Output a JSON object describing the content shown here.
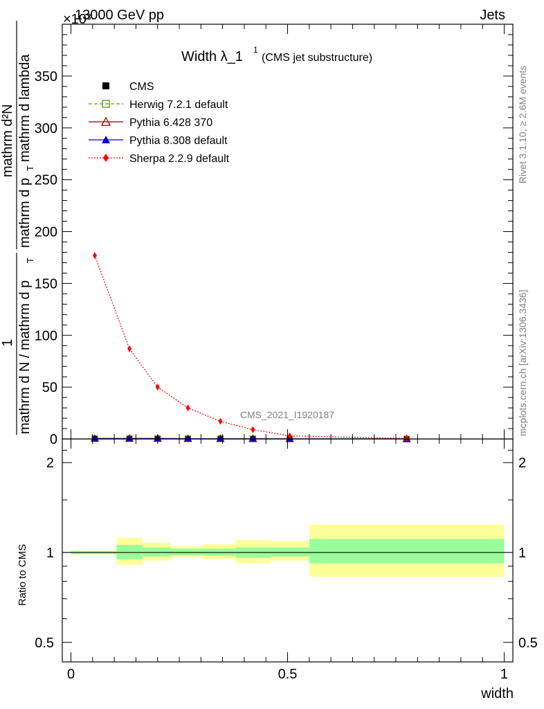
{
  "header": {
    "left": "13000 GeV pp",
    "right": "Jets",
    "exponent": "×10³"
  },
  "title": {
    "main": "Width λ_1",
    "superscript": "1",
    "sub": "(CMS jet substructure)"
  },
  "watermark": "CMS_2021_I1920187",
  "side_labels": {
    "rivet": "Rivet 3.1.10, ≥ 2.6M events",
    "mcplots": "mcplots.cern.ch [arXiv:1306.3436]"
  },
  "axis_labels": {
    "ylabel_main": "1 / (mathrm d N / mathrm d p_T) · mathrm d²N / (mathrm d p_T mathrm d lambda)",
    "ylabel_main_num_1": "1",
    "ylabel_main_den_1": "mathrm d N / mathrm d p",
    "ylabel_main_den_1_sub": "T",
    "ylabel_main_num_2": "mathrm d²N",
    "ylabel_main_den_2": "mathrm d p",
    "ylabel_main_den_2_sub": "T",
    "ylabel_main_den_2_rest": "mathrm d lambda",
    "ylabel_ratio": "Ratio to CMS",
    "xlabel": "width"
  },
  "colors": {
    "cms": "#000000",
    "herwig": "#4d9a00",
    "pythia6": "#8b0000",
    "pythia8": "#0000cc",
    "sherpa": "#ff0000",
    "band_inner": "#99ff99",
    "band_outer": "#ffff99"
  },
  "chart_data": [
    {
      "type": "line",
      "panel": "main",
      "xlim": [
        -0.02,
        1.02
      ],
      "ylim": [
        0,
        400
      ],
      "y_ticks": [
        0,
        50,
        100,
        150,
        200,
        250,
        300,
        350
      ],
      "y_tick_labels": [
        "0",
        "50",
        "100",
        "150",
        "200",
        "250",
        "300",
        "350"
      ],
      "y_multiplier_label": "×10³",
      "legend_position": "top-left",
      "series": [
        {
          "name": "CMS",
          "marker": "square-filled",
          "color": "#000000",
          "x": [
            0.055,
            0.135,
            0.2,
            0.27,
            0.345,
            0.42,
            0.505,
            0.775
          ],
          "y": [
            0.4,
            0.4,
            0.4,
            0.3,
            0.3,
            0.2,
            0.1,
            0.05
          ]
        },
        {
          "name": "Herwig 7.2.1 default",
          "marker": "square-open",
          "line": "dashed",
          "color": "#4d9a00",
          "x": [
            0.055,
            0.135,
            0.2,
            0.27,
            0.345,
            0.42,
            0.505,
            0.775
          ],
          "y": [
            0.4,
            0.4,
            0.4,
            0.3,
            0.3,
            0.2,
            0.1,
            0.05
          ]
        },
        {
          "name": "Pythia 6.428 370",
          "marker": "triangle-open",
          "line": "solid",
          "color": "#8b0000",
          "x": [
            0.055,
            0.135,
            0.2,
            0.27,
            0.345,
            0.42,
            0.505,
            0.775
          ],
          "y": [
            0.4,
            0.4,
            0.4,
            0.3,
            0.3,
            0.2,
            0.1,
            0.05
          ]
        },
        {
          "name": "Pythia 8.308 default",
          "marker": "triangle-filled",
          "line": "solid",
          "color": "#0000cc",
          "x": [
            0.055,
            0.135,
            0.2,
            0.27,
            0.345,
            0.42,
            0.505,
            0.775
          ],
          "y": [
            0.4,
            0.4,
            0.4,
            0.3,
            0.3,
            0.2,
            0.1,
            0.05
          ]
        },
        {
          "name": "Sherpa 2.2.9 default",
          "marker": "diamond-filled",
          "line": "dotted",
          "color": "#ff0000",
          "x": [
            0.055,
            0.135,
            0.2,
            0.27,
            0.345,
            0.42,
            0.505,
            0.775
          ],
          "y": [
            177,
            87,
            50,
            30,
            17,
            9,
            3,
            0.5
          ]
        }
      ]
    },
    {
      "type": "area",
      "panel": "ratio",
      "ylabel": "Ratio to CMS",
      "xlabel": "width",
      "xlim": [
        -0.02,
        1.02
      ],
      "ylim": [
        0.43,
        2.4
      ],
      "log_y": true,
      "y_ticks": [
        0.5,
        1,
        2
      ],
      "y_tick_labels": [
        "0.5",
        "1",
        "2"
      ],
      "x_ticks": [
        0,
        0.5,
        1
      ],
      "x_tick_labels": [
        "0",
        "0.5",
        "1"
      ],
      "bins": [
        {
          "x_low": 0.0,
          "x_high": 0.105,
          "inner": [
            0.99,
            1.01
          ],
          "outer": [
            0.985,
            1.015
          ]
        },
        {
          "x_low": 0.105,
          "x_high": 0.165,
          "inner": [
            0.95,
            1.06
          ],
          "outer": [
            0.91,
            1.12
          ]
        },
        {
          "x_low": 0.165,
          "x_high": 0.23,
          "inner": [
            0.97,
            1.04
          ],
          "outer": [
            0.94,
            1.08
          ]
        },
        {
          "x_low": 0.23,
          "x_high": 0.305,
          "inner": [
            0.98,
            1.03
          ],
          "outer": [
            0.965,
            1.05
          ]
        },
        {
          "x_low": 0.305,
          "x_high": 0.38,
          "inner": [
            0.975,
            1.03
          ],
          "outer": [
            0.95,
            1.065
          ]
        },
        {
          "x_low": 0.38,
          "x_high": 0.46,
          "inner": [
            0.96,
            1.04
          ],
          "outer": [
            0.92,
            1.1
          ]
        },
        {
          "x_low": 0.46,
          "x_high": 0.55,
          "inner": [
            0.97,
            1.04
          ],
          "outer": [
            0.94,
            1.09
          ]
        },
        {
          "x_low": 0.55,
          "x_high": 1.0,
          "inner": [
            0.92,
            1.11
          ],
          "outer": [
            0.83,
            1.24
          ]
        }
      ],
      "reference_line": 1
    }
  ]
}
